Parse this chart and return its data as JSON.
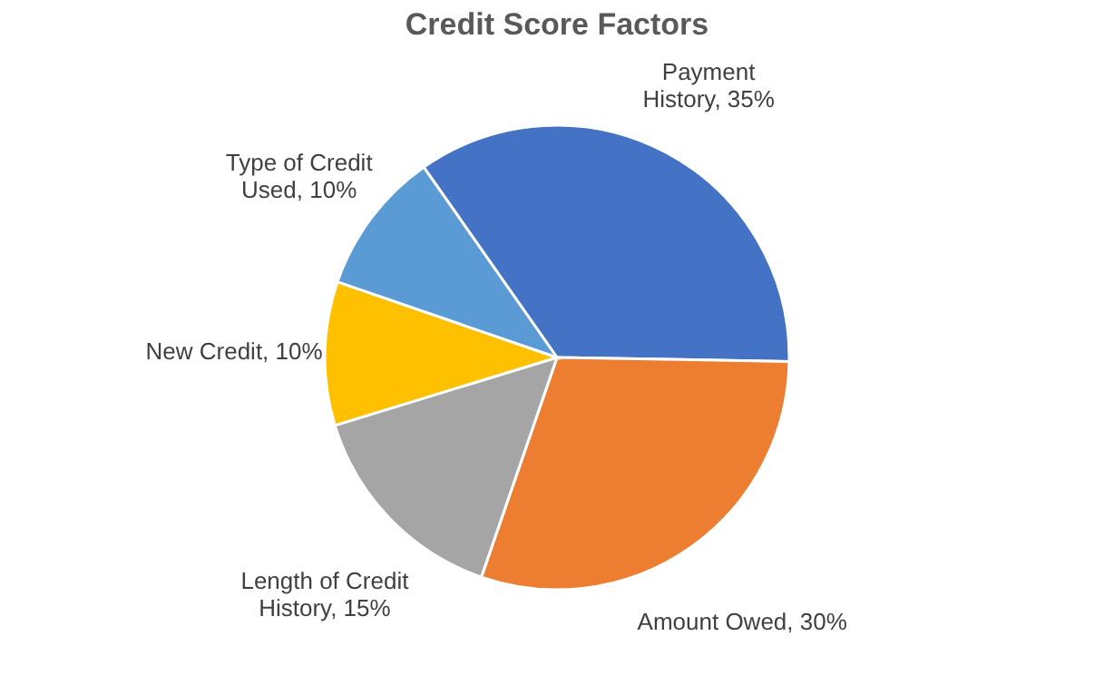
{
  "chart_data": {
    "type": "pie",
    "title": "Credit Score Factors",
    "categories": [
      "Payment History",
      "Amount Owed",
      "Length of Credit History",
      "New Credit",
      "Type of Credit Used"
    ],
    "values": [
      35,
      30,
      15,
      10,
      10
    ],
    "value_labels": [
      "35%",
      "30%",
      "15%",
      "10%",
      "10%"
    ],
    "colors": [
      "#4472c4",
      "#ed7d31",
      "#a5a5a5",
      "#ffc000",
      "#5b9bd5"
    ],
    "legend": false
  }
}
